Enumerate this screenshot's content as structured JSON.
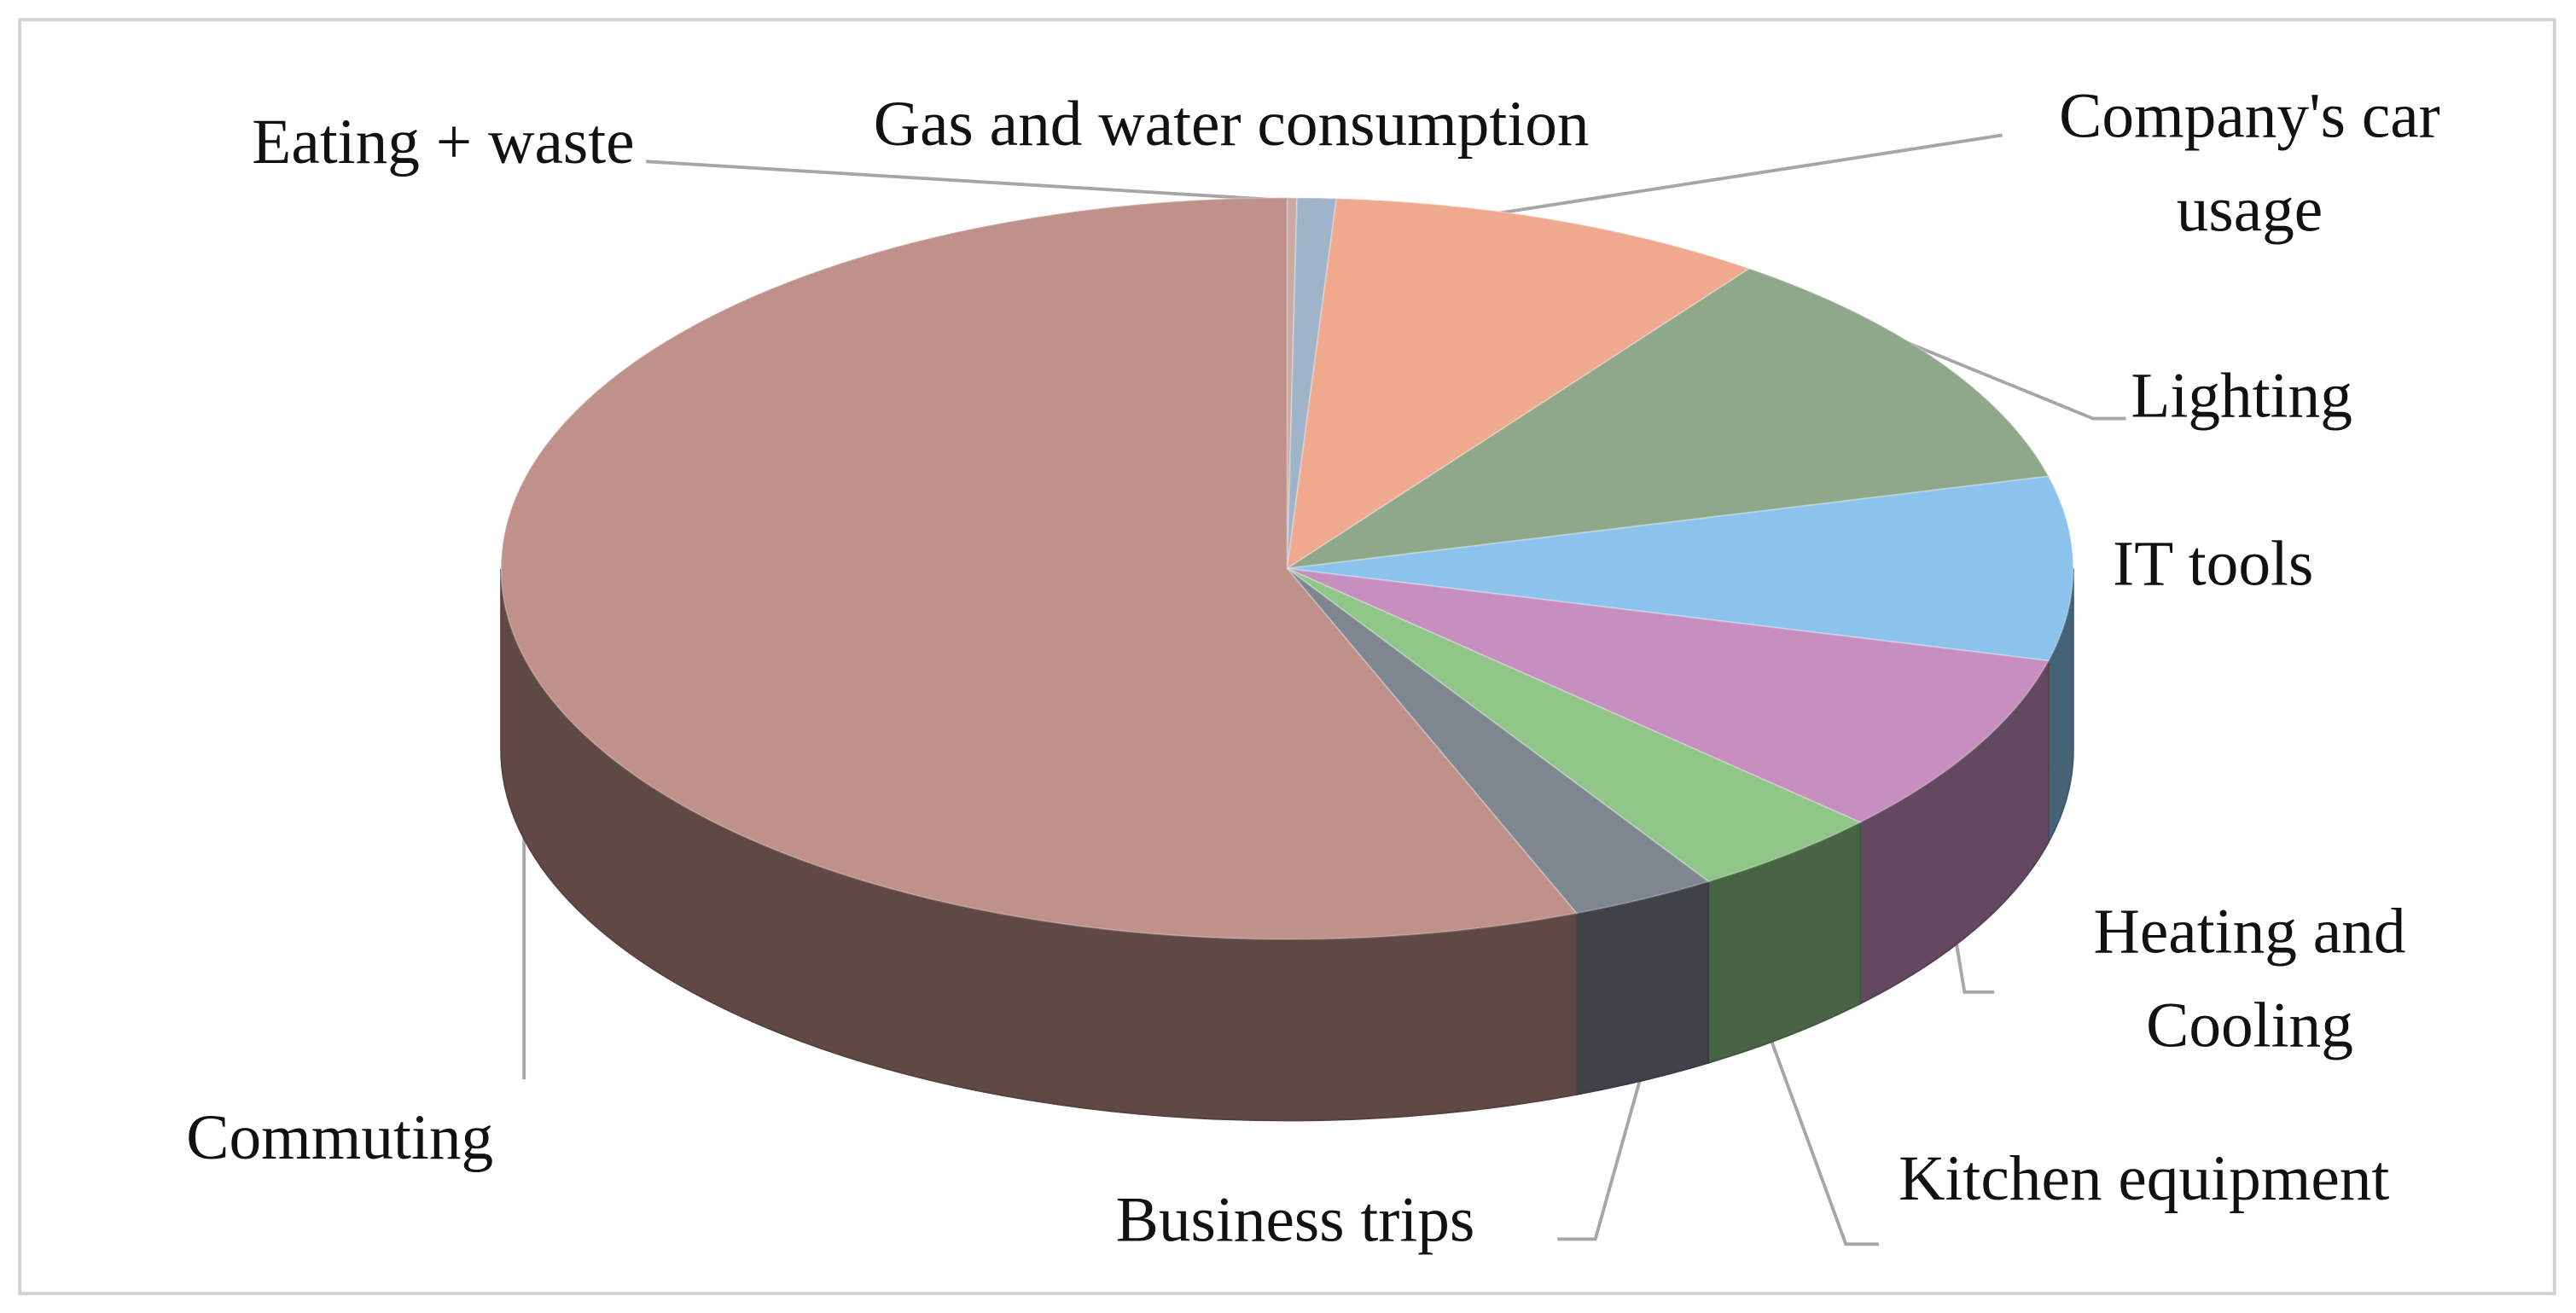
{
  "chart_data": {
    "type": "pie",
    "categories": [
      "Eating + waste",
      "Gas and water consumption",
      "Company's car usage",
      "Lighting",
      "IT tools",
      "Heating and Cooling",
      "Kitchen equipment",
      "Business trips",
      "Commuting"
    ],
    "values": [
      0.2,
      0.8,
      9,
      11,
      8,
      8,
      4,
      3,
      56
    ],
    "colors": [
      "#c9aaa2",
      "#9fb4c8",
      "#efa98f",
      "#8fa88a",
      "#8cc3ec",
      "#c68fbf",
      "#91c689",
      "#7e8690",
      "#c0918a"
    ]
  }
}
